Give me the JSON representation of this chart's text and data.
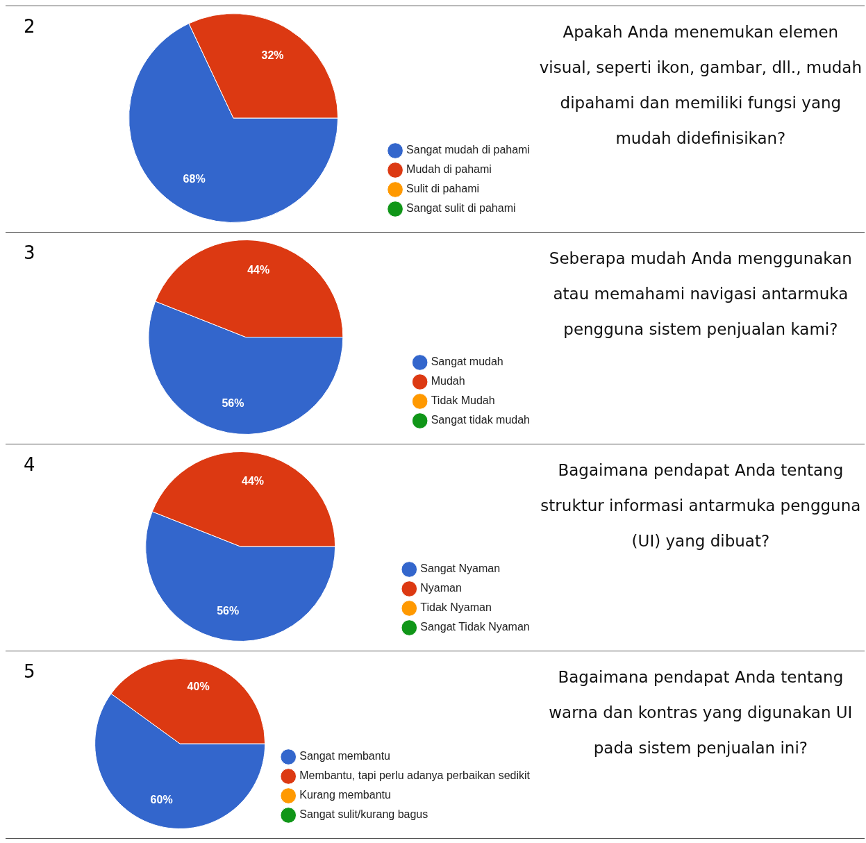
{
  "chart_data": [
    {
      "type": "pie",
      "title": "Apakah Anda menemukan elemen visual, seperti ikon, gambar, dll., mudah dipahami dan memiliki fungsi yang mudah didefinisikan?",
      "annotations": [
        "2"
      ],
      "categories": [
        "Sangat mudah di pahami",
        "Mudah di pahami",
        "Sulit di pahami",
        "Sangat sulit di pahami"
      ],
      "values": [
        68,
        32,
        0,
        0
      ],
      "value_labels": [
        "68%",
        "32%",
        null,
        null
      ],
      "colors": [
        "#3366cc",
        "#dc3912",
        "#ff9900",
        "#109618"
      ],
      "legend": "right"
    },
    {
      "type": "pie",
      "title": "Seberapa mudah Anda menggunakan atau memahami navigasi antarmuka pengguna sistem penjualan kami?",
      "annotations": [
        "3"
      ],
      "categories": [
        "Sangat mudah",
        "Mudah",
        "Tidak Mudah",
        "Sangat tidak mudah"
      ],
      "values": [
        56,
        44,
        0,
        0
      ],
      "value_labels": [
        "56%",
        "44%",
        null,
        null
      ],
      "colors": [
        "#3366cc",
        "#dc3912",
        "#ff9900",
        "#109618"
      ],
      "legend": "right"
    },
    {
      "type": "pie",
      "title": "Bagaimana pendapat Anda tentang struktur  informasi antarmuka pengguna (UI) yang dibuat?",
      "annotations": [
        "4"
      ],
      "categories": [
        "Sangat Nyaman",
        "Nyaman",
        "Tidak Nyaman",
        "Sangat Tidak Nyaman"
      ],
      "values": [
        56,
        44,
        0,
        0
      ],
      "value_labels": [
        "56%",
        "44%",
        null,
        null
      ],
      "colors": [
        "#3366cc",
        "#dc3912",
        "#ff9900",
        "#109618"
      ],
      "legend": "right"
    },
    {
      "type": "pie",
      "title": "Bagaimana pendapat Anda tentang warna dan kontras yang digunakan UI pada sistem penjualan ini?",
      "annotations": [
        "5"
      ],
      "categories": [
        "Sangat membantu",
        "Membantu, tapi perlu adanya perbaikan sedikit",
        "Kurang membantu",
        "Sangat sulit/kurang bagus"
      ],
      "values": [
        60,
        40,
        0,
        0
      ],
      "value_labels": [
        "60%",
        "40%",
        null,
        null
      ],
      "colors": [
        "#3366cc",
        "#dc3912",
        "#ff9900",
        "#109618"
      ],
      "legend": "right"
    }
  ]
}
